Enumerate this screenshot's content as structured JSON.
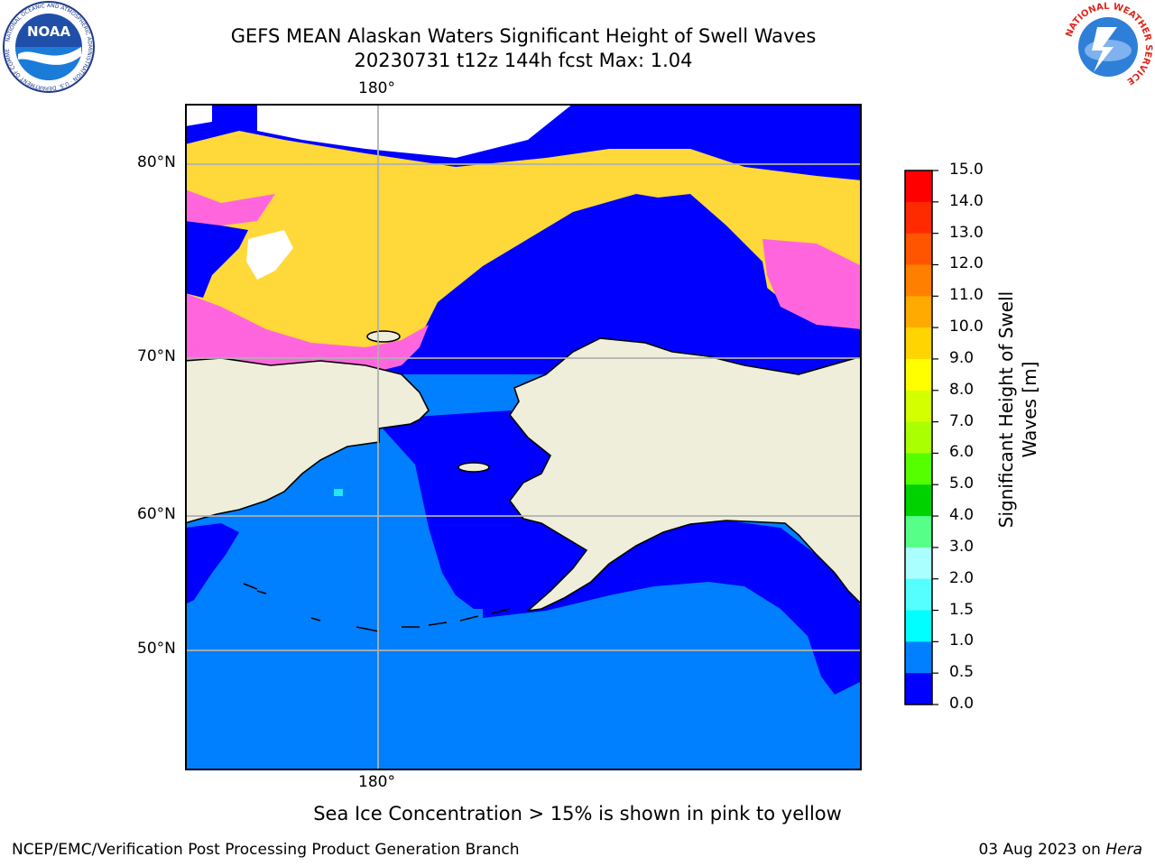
{
  "header": {
    "title_line1": "GEFS MEAN Alaskan Waters Significant Height of Swell Waves",
    "title_line2": "20230731 t12z 144h fcst   Max: 1.04"
  },
  "map": {
    "lon_label_top": "180°",
    "lon_label_bottom": "180°",
    "lat_labels": [
      "80°N",
      "70°N",
      "60°N",
      "50°N"
    ],
    "colors": {
      "land": "#efeedb",
      "ocean_0_0p5": "#0000ff",
      "ocean_0p5_1": "#007fff",
      "ice_pink": "#ff66dd",
      "ice_yellow": "#ffd83a",
      "cyan_patch": "#22e6f0",
      "grid": "#b0b0b0",
      "coast": "#000000"
    }
  },
  "colorbar": {
    "title_line1": "Significant Height of Swell",
    "title_line2": "Waves [m]",
    "tick_labels": [
      "15.0",
      "14.0",
      "13.0",
      "12.0",
      "11.0",
      "10.0",
      "9.0",
      "8.0",
      "7.0",
      "6.0",
      "5.0",
      "4.0",
      "3.0",
      "2.0",
      "1.5",
      "1.0",
      "0.5",
      "0.0"
    ],
    "colors_top_to_bottom": [
      "#ff0000",
      "#ff2a00",
      "#ff5500",
      "#ff7f00",
      "#ffaa00",
      "#ffd400",
      "#ffff00",
      "#d4ff00",
      "#aaff00",
      "#55ff00",
      "#00d200",
      "#55ff88",
      "#aaffff",
      "#55ffff",
      "#00ffff",
      "#007fff",
      "#0000ff"
    ]
  },
  "footer": {
    "note": "Sea Ice Concentration > 15% is shown in pink to yellow",
    "credit_left": "NCEP/EMC/Verification Post Processing Product Generation Branch",
    "credit_right_date": "03 Aug 2023 on ",
    "credit_right_machine": "Hera"
  },
  "logos": {
    "left_text": "NOAA",
    "left_ring": "NATIONAL OCEANIC AND ATMOSPHERIC ADMINISTRATION · U.S. DEPARTMENT OF COMMERCE",
    "right_ring": "NATIONAL WEATHER SERVICE"
  }
}
